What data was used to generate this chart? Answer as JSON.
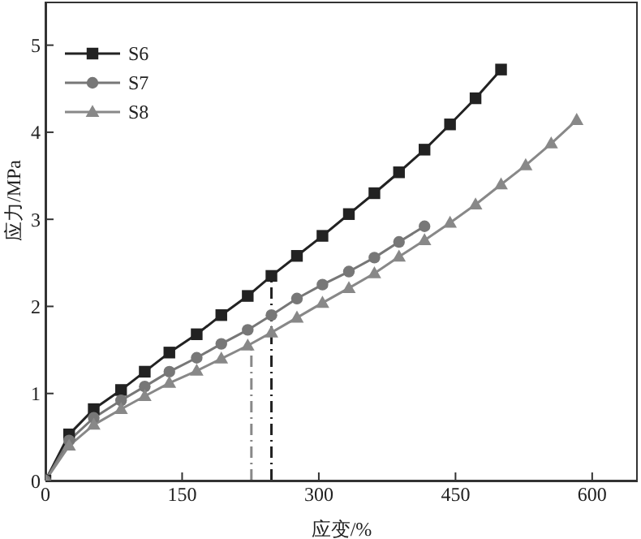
{
  "chart_data": {
    "type": "line",
    "xlabel": "应变/%",
    "ylabel": "应力/MPa",
    "xlim": [
      0,
      650
    ],
    "xticks": [
      0,
      150,
      300,
      450,
      600
    ],
    "ylim": [
      0,
      5.5
    ],
    "yticks": [
      0,
      1,
      2,
      3,
      4,
      5
    ],
    "legend": "top left",
    "line_style": "solid",
    "series": [
      {
        "name": "S6",
        "color": "#222222",
        "marker": "square",
        "x": [
          0,
          26,
          53,
          83,
          109,
          136,
          166,
          193,
          222,
          248,
          276,
          304,
          333,
          361,
          388,
          416,
          444,
          472,
          500
        ],
        "values": [
          0,
          0.53,
          0.82,
          1.04,
          1.25,
          1.47,
          1.68,
          1.9,
          2.12,
          2.35,
          2.58,
          2.81,
          3.06,
          3.3,
          3.54,
          3.8,
          4.09,
          4.39,
          4.72
        ]
      },
      {
        "name": "S7",
        "color": "#777777",
        "marker": "circle",
        "x": [
          0,
          26,
          53,
          83,
          109,
          136,
          166,
          193,
          222,
          248,
          276,
          304,
          333,
          361,
          388,
          416
        ],
        "values": [
          0,
          0.46,
          0.72,
          0.92,
          1.08,
          1.25,
          1.41,
          1.57,
          1.73,
          1.9,
          2.09,
          2.25,
          2.4,
          2.56,
          2.74,
          2.92
        ]
      },
      {
        "name": "S8",
        "color": "#888888",
        "marker": "triangle",
        "x": [
          0,
          26,
          53,
          83,
          109,
          136,
          166,
          193,
          222,
          248,
          276,
          304,
          333,
          361,
          388,
          416,
          444,
          472,
          500,
          527,
          555,
          583
        ],
        "values": [
          0,
          0.4,
          0.64,
          0.82,
          0.97,
          1.12,
          1.26,
          1.4,
          1.55,
          1.7,
          1.87,
          2.04,
          2.21,
          2.38,
          2.57,
          2.76,
          2.96,
          3.17,
          3.4,
          3.62,
          3.87,
          4.14
        ]
      },
      {
        "color": "#888888",
        "marker": "none",
        "line_style": "dashed",
        "x": [
          226,
          226
        ],
        "values": [
          0,
          1.55
        ]
      },
      {
        "color": "#222222",
        "marker": "none",
        "line_style": "dashed",
        "x": [
          248,
          248
        ],
        "values": [
          0,
          2.35
        ]
      }
    ]
  }
}
